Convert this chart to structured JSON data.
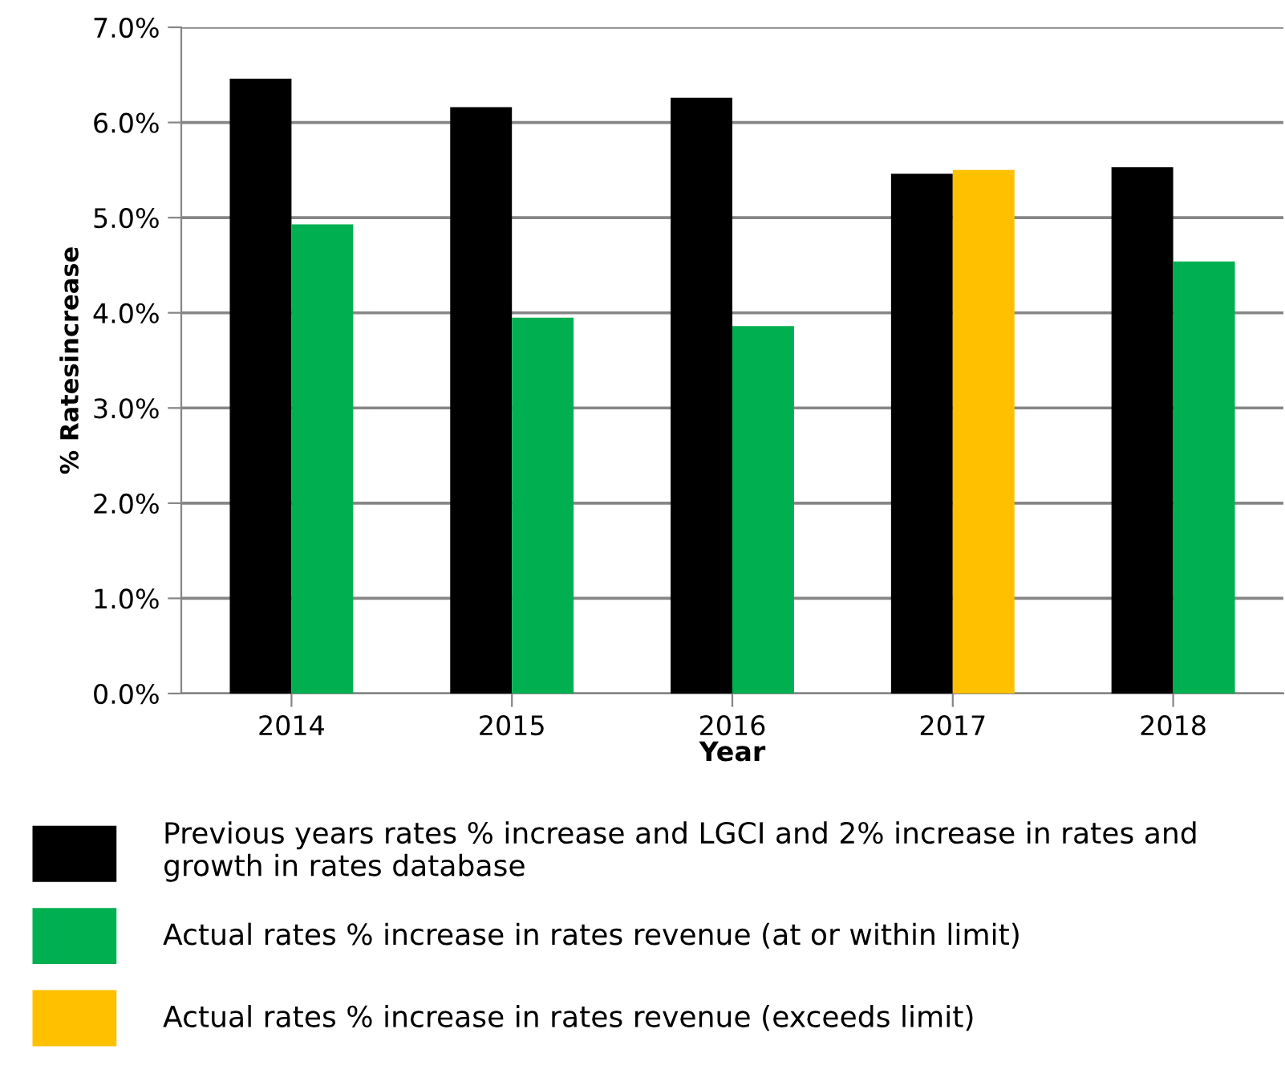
{
  "chart_data": {
    "type": "bar",
    "xlabel": "Year",
    "ylabel": "% Ratesincrease",
    "categories": [
      "2014",
      "2015",
      "2016",
      "2017",
      "2018"
    ],
    "series": [
      {
        "name": "Previous years rates % increase and LGCI and 2% increase in rates and growth in rates database",
        "color": "#000000",
        "values": [
          6.46,
          6.16,
          6.26,
          5.46,
          5.53
        ]
      },
      {
        "name": "Actual rates % increase in rates revenue (at or within limit)",
        "color": "#00b050",
        "values": [
          4.93,
          3.95,
          3.86,
          null,
          4.54
        ]
      },
      {
        "name": "Actual rates % increase in rates revenue (exceeds limit)",
        "color": "#ffc000",
        "values": [
          null,
          null,
          null,
          5.5,
          null
        ]
      }
    ],
    "ylim": [
      0,
      7
    ],
    "yticks": [
      {
        "value": 0,
        "label": "0.0%"
      },
      {
        "value": 1,
        "label": "1.0%"
      },
      {
        "value": 2,
        "label": "2.0%"
      },
      {
        "value": 3,
        "label": "3.0%"
      },
      {
        "value": 4,
        "label": "4.0%"
      },
      {
        "value": 5,
        "label": "5.0%"
      },
      {
        "value": 6,
        "label": "6.0%"
      },
      {
        "value": 7,
        "label": "7.0%"
      }
    ],
    "grid": "y",
    "legend": "bottom"
  }
}
